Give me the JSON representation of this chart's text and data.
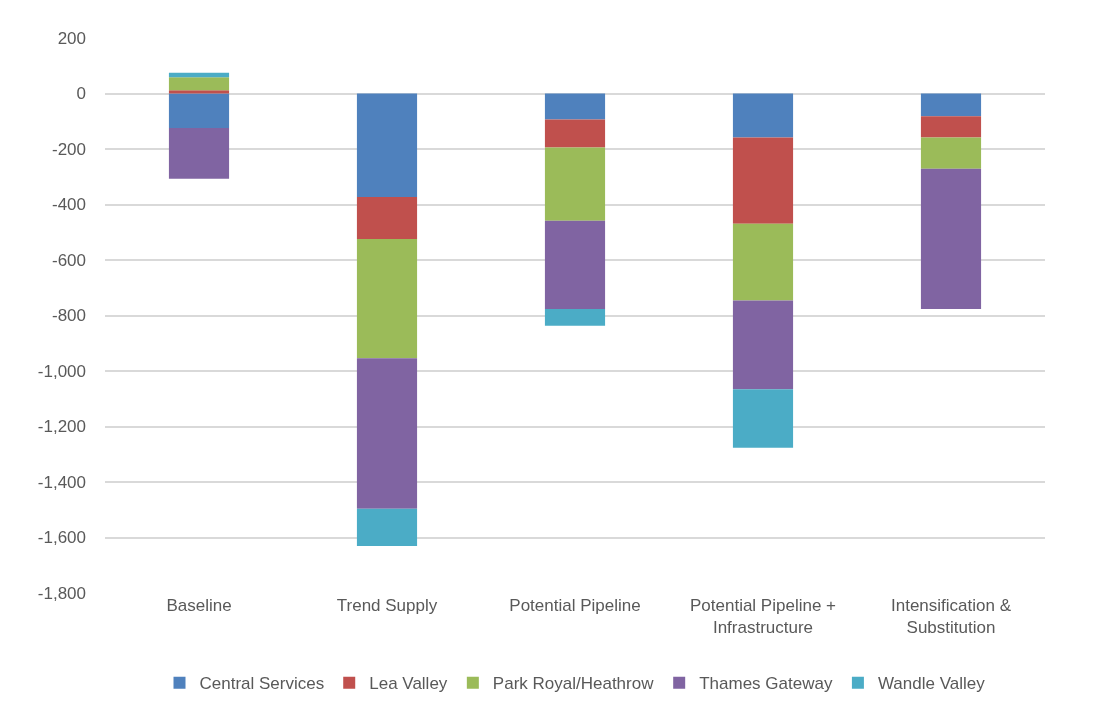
{
  "chart_data": {
    "type": "bar",
    "stacked": true,
    "categories": [
      "Baseline",
      "Trend Supply",
      "Potential Pipeline",
      "Potential Pipeline +\nInfrastructure",
      "Intensification &\nSubstitution"
    ],
    "series": [
      {
        "name": "Central Services",
        "color": "#4f81bd",
        "values": [
          -124,
          -373,
          -94,
          -159,
          -82
        ]
      },
      {
        "name": "Lea Valley",
        "color": "#c0504d",
        "values": [
          12,
          -151,
          -101,
          -310,
          -77
        ]
      },
      {
        "name": "Park Royal/Heathrow",
        "color": "#9bbb59",
        "values": [
          47,
          -430,
          -264,
          -277,
          -112
        ]
      },
      {
        "name": "Thames Gateway",
        "color": "#8064a2",
        "values": [
          -183,
          -542,
          -318,
          -320,
          -506
        ]
      },
      {
        "name": "Wandle Valley",
        "color": "#4bacc6",
        "values": [
          16,
          -135,
          -60,
          -211,
          null
        ]
      }
    ],
    "ylim": [
      -1800,
      200
    ],
    "yticks": [
      200,
      0,
      {
        "value": -200,
        "label": "-200"
      },
      {
        "value": -400,
        "label": "-400"
      },
      {
        "value": -600,
        "label": "-600"
      },
      {
        "value": -800,
        "label": "-800"
      },
      {
        "value": -1000,
        "label": "-1,000"
      },
      {
        "value": -1200,
        "label": "-1,200"
      },
      {
        "value": -1400,
        "label": "-1,400"
      },
      {
        "value": -1600,
        "label": "-1,600"
      },
      {
        "value": -1800,
        "label": "-1,800"
      }
    ],
    "grid": "y",
    "legend": "bottom"
  }
}
